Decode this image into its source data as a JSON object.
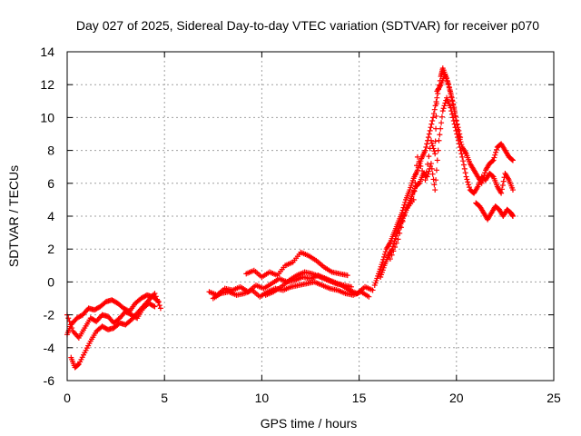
{
  "chart_data": {
    "type": "scatter",
    "title": "Day 027 of 2025, Sidereal Day-to-day VTEC variation (SDTVAR) for receiver p070",
    "xlabel": "GPS time / hours",
    "ylabel": "SDTVAR / TECUs",
    "xlim": [
      0,
      25
    ],
    "ylim": [
      -6,
      14
    ],
    "xticks": [
      "0",
      "5",
      "10",
      "15",
      "20",
      "25"
    ],
    "yticks": [
      "-6",
      "-4",
      "-2",
      "0",
      "2",
      "4",
      "6",
      "8",
      "10",
      "12",
      "14"
    ],
    "grid": true,
    "marker": "+",
    "series_color": "#ff0000",
    "series": [
      {
        "name": "SDTVAR",
        "values": [
          [
            0.0,
            -3.2
          ],
          [
            0.2,
            -2.6
          ],
          [
            0.5,
            -2.2
          ],
          [
            0.8,
            -2.0
          ],
          [
            1.1,
            -1.6
          ],
          [
            1.4,
            -1.7
          ],
          [
            1.7,
            -1.5
          ],
          [
            2.0,
            -1.2
          ],
          [
            2.3,
            -1.1
          ],
          [
            2.6,
            -1.3
          ],
          [
            2.9,
            -1.6
          ],
          [
            3.2,
            -1.8
          ],
          [
            3.5,
            -1.3
          ],
          [
            3.8,
            -1.0
          ],
          [
            4.1,
            -0.8
          ],
          [
            4.4,
            -0.9
          ],
          [
            4.7,
            -1.2
          ],
          [
            0.0,
            -2.0
          ],
          [
            0.3,
            -3.0
          ],
          [
            0.6,
            -3.4
          ],
          [
            0.9,
            -2.8
          ],
          [
            1.2,
            -2.2
          ],
          [
            1.5,
            -2.4
          ],
          [
            1.8,
            -2.0
          ],
          [
            2.1,
            -2.1
          ],
          [
            2.4,
            -2.5
          ],
          [
            2.7,
            -2.2
          ],
          [
            3.0,
            -1.8
          ],
          [
            3.3,
            -2.0
          ],
          [
            3.6,
            -2.2
          ],
          [
            3.9,
            -1.6
          ],
          [
            4.2,
            -1.3
          ],
          [
            4.5,
            -1.5
          ],
          [
            0.2,
            -4.6
          ],
          [
            0.4,
            -5.2
          ],
          [
            0.6,
            -5.0
          ],
          [
            0.9,
            -4.3
          ],
          [
            1.2,
            -3.6
          ],
          [
            1.5,
            -3.0
          ],
          [
            1.8,
            -2.7
          ],
          [
            2.1,
            -2.9
          ],
          [
            2.4,
            -2.8
          ],
          [
            2.7,
            -2.5
          ],
          [
            3.0,
            -2.6
          ],
          [
            3.3,
            -2.3
          ],
          [
            3.6,
            -1.9
          ],
          [
            3.9,
            -1.5
          ],
          [
            4.2,
            -1.1
          ],
          [
            4.5,
            -0.7
          ],
          [
            4.8,
            -1.6
          ],
          [
            7.3,
            -0.6
          ],
          [
            7.7,
            -0.8
          ],
          [
            8.1,
            -0.4
          ],
          [
            8.5,
            -0.5
          ],
          [
            8.9,
            -0.3
          ],
          [
            9.3,
            -0.6
          ],
          [
            9.7,
            -0.2
          ],
          [
            10.1,
            -0.4
          ],
          [
            10.5,
            -0.1
          ],
          [
            10.9,
            0.2
          ],
          [
            11.3,
            0.0
          ],
          [
            11.7,
            0.1
          ],
          [
            12.1,
            0.3
          ],
          [
            12.5,
            0.2
          ],
          [
            12.9,
            0.4
          ],
          [
            13.3,
            0.2
          ],
          [
            13.7,
            0.0
          ],
          [
            14.1,
            -0.2
          ],
          [
            14.5,
            -0.5
          ],
          [
            14.9,
            -0.7
          ],
          [
            15.3,
            -0.3
          ],
          [
            15.7,
            -0.5
          ],
          [
            7.5,
            -1.0
          ],
          [
            7.9,
            -0.7
          ],
          [
            8.3,
            -0.6
          ],
          [
            8.7,
            -0.8
          ],
          [
            9.1,
            -0.7
          ],
          [
            9.5,
            -0.5
          ],
          [
            9.9,
            -0.9
          ],
          [
            10.3,
            -0.6
          ],
          [
            10.7,
            -0.4
          ],
          [
            11.1,
            -0.5
          ],
          [
            11.5,
            -0.3
          ],
          [
            11.9,
            -0.2
          ],
          [
            12.3,
            -0.1
          ],
          [
            12.7,
            0.0
          ],
          [
            13.1,
            -0.2
          ],
          [
            13.5,
            -0.4
          ],
          [
            13.9,
            -0.5
          ],
          [
            14.3,
            -0.7
          ],
          [
            14.7,
            -0.8
          ],
          [
            15.1,
            -0.6
          ],
          [
            15.5,
            -0.9
          ],
          [
            9.2,
            0.5
          ],
          [
            9.6,
            0.7
          ],
          [
            10.0,
            0.3
          ],
          [
            10.4,
            0.6
          ],
          [
            10.8,
            0.4
          ],
          [
            11.2,
            1.0
          ],
          [
            11.6,
            1.2
          ],
          [
            12.0,
            1.8
          ],
          [
            12.4,
            1.6
          ],
          [
            12.8,
            1.3
          ],
          [
            13.2,
            0.9
          ],
          [
            13.6,
            0.6
          ],
          [
            14.0,
            0.5
          ],
          [
            14.4,
            0.4
          ],
          [
            10.2,
            -0.8
          ],
          [
            10.6,
            -0.6
          ],
          [
            11.0,
            -0.3
          ],
          [
            11.4,
            0.1
          ],
          [
            11.8,
            0.4
          ],
          [
            12.2,
            0.6
          ],
          [
            12.6,
            0.5
          ],
          [
            13.0,
            0.3
          ],
          [
            13.4,
            0.1
          ],
          [
            13.8,
            -0.1
          ],
          [
            14.2,
            -0.2
          ],
          [
            14.6,
            -0.3
          ],
          [
            15.8,
            -0.2
          ],
          [
            16.0,
            0.5
          ],
          [
            16.2,
            1.2
          ],
          [
            16.4,
            2.0
          ],
          [
            16.6,
            2.4
          ],
          [
            16.8,
            3.0
          ],
          [
            17.0,
            3.6
          ],
          [
            17.2,
            4.2
          ],
          [
            17.4,
            5.0
          ],
          [
            17.6,
            5.6
          ],
          [
            17.8,
            6.3
          ],
          [
            18.0,
            6.8
          ],
          [
            18.2,
            7.5
          ],
          [
            18.4,
            8.0
          ],
          [
            18.6,
            9.0
          ],
          [
            18.8,
            10.0
          ],
          [
            19.0,
            11.2
          ],
          [
            19.2,
            12.5
          ],
          [
            19.3,
            13.0
          ],
          [
            19.5,
            12.4
          ],
          [
            19.7,
            11.5
          ],
          [
            19.9,
            10.4
          ],
          [
            20.1,
            9.0
          ],
          [
            20.3,
            8.2
          ],
          [
            20.5,
            7.8
          ],
          [
            20.7,
            7.2
          ],
          [
            20.9,
            6.8
          ],
          [
            21.1,
            6.4
          ],
          [
            21.3,
            6.0
          ],
          [
            21.5,
            6.8
          ],
          [
            21.7,
            7.2
          ],
          [
            21.9,
            7.4
          ],
          [
            22.1,
            8.2
          ],
          [
            22.3,
            8.4
          ],
          [
            22.5,
            8.0
          ],
          [
            22.7,
            7.6
          ],
          [
            22.9,
            7.4
          ],
          [
            16.1,
            0.3
          ],
          [
            16.3,
            1.0
          ],
          [
            16.5,
            1.6
          ],
          [
            16.7,
            2.0
          ],
          [
            16.9,
            2.8
          ],
          [
            17.1,
            3.4
          ],
          [
            17.3,
            4.0
          ],
          [
            17.5,
            4.6
          ],
          [
            17.7,
            5.2
          ],
          [
            17.9,
            5.8
          ],
          [
            18.1,
            6.0
          ],
          [
            18.3,
            6.6
          ],
          [
            18.5,
            6.4
          ],
          [
            18.7,
            7.2
          ],
          [
            18.9,
            5.6
          ],
          [
            19.1,
            8.6
          ],
          [
            19.3,
            10.4
          ],
          [
            19.5,
            11.2
          ],
          [
            19.7,
            10.6
          ],
          [
            19.9,
            9.6
          ],
          [
            20.1,
            8.6
          ],
          [
            20.3,
            7.6
          ],
          [
            20.5,
            6.4
          ],
          [
            20.7,
            5.6
          ],
          [
            20.9,
            5.4
          ],
          [
            21.1,
            5.8
          ],
          [
            21.3,
            6.4
          ],
          [
            21.5,
            6.2
          ],
          [
            21.7,
            6.6
          ],
          [
            21.9,
            6.4
          ],
          [
            22.1,
            5.8
          ],
          [
            22.3,
            5.4
          ],
          [
            22.5,
            6.6
          ],
          [
            22.7,
            6.2
          ],
          [
            22.9,
            5.6
          ],
          [
            16.6,
            1.4
          ],
          [
            17.0,
            2.6
          ],
          [
            17.4,
            4.4
          ],
          [
            17.8,
            5.0
          ],
          [
            18.0,
            7.6
          ],
          [
            18.4,
            6.2
          ],
          [
            18.7,
            8.6
          ],
          [
            18.9,
            7.8
          ],
          [
            19.0,
            11.6
          ],
          [
            19.2,
            12.0
          ],
          [
            19.4,
            12.6
          ],
          [
            19.6,
            12.0
          ],
          [
            19.8,
            11.0
          ],
          [
            20.0,
            9.8
          ],
          [
            20.2,
            8.8
          ],
          [
            21.0,
            4.8
          ],
          [
            21.2,
            4.6
          ],
          [
            21.4,
            4.2
          ],
          [
            21.6,
            3.8
          ],
          [
            21.8,
            4.2
          ],
          [
            22.0,
            4.6
          ],
          [
            22.2,
            4.4
          ],
          [
            22.4,
            4.0
          ],
          [
            22.6,
            4.4
          ],
          [
            22.8,
            4.2
          ],
          [
            22.9,
            4.0
          ]
        ]
      }
    ]
  }
}
